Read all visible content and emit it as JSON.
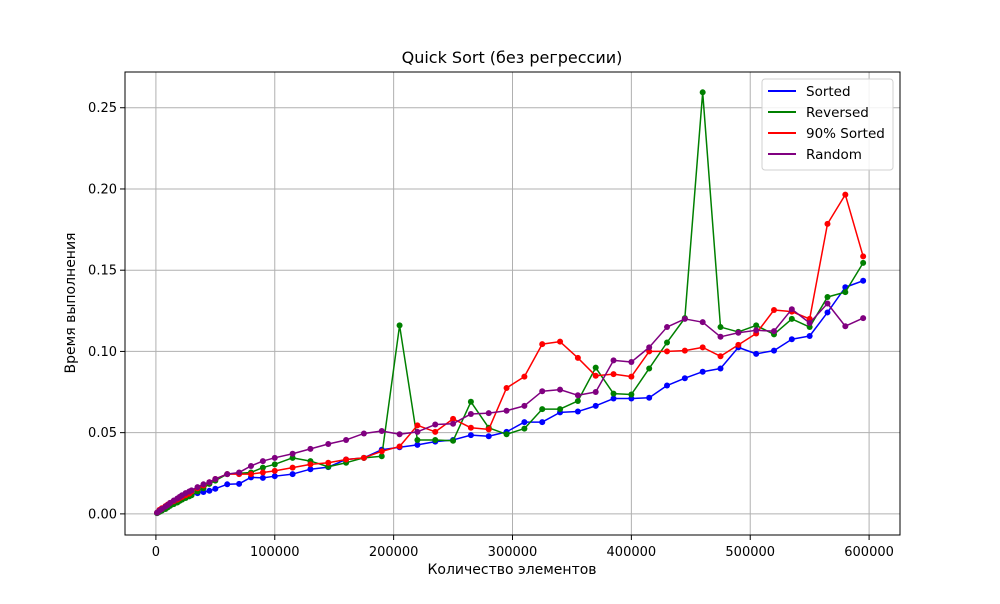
{
  "chart_data": {
    "type": "line",
    "title": "Quick Sort (без регрессии)",
    "xlabel": "Количество элементов",
    "ylabel": "Время выполнения",
    "xlim": [
      -26000,
      626000
    ],
    "ylim": [
      -0.013,
      0.272
    ],
    "xticks": [
      0,
      100000,
      200000,
      300000,
      400000,
      500000,
      600000
    ],
    "yticks": [
      0.0,
      0.05,
      0.1,
      0.15,
      0.2,
      0.25
    ],
    "xtick_labels": [
      "0",
      "100000",
      "200000",
      "300000",
      "400000",
      "500000",
      "600000"
    ],
    "ytick_labels": [
      "0.00",
      "0.05",
      "0.10",
      "0.15",
      "0.20",
      "0.25"
    ],
    "grid": true,
    "legend_position": "top-right",
    "x": [
      1000,
      3000,
      5000,
      8000,
      10000,
      12000,
      15000,
      18000,
      20000,
      22000,
      25000,
      28000,
      30000,
      35000,
      40000,
      45000,
      50000,
      60000,
      70000,
      80000,
      90000,
      100000,
      115000,
      130000,
      145000,
      160000,
      175000,
      190000,
      205000,
      220000,
      235000,
      250000,
      265000,
      280000,
      295000,
      310000,
      325000,
      340000,
      355000,
      370000,
      385000,
      400000,
      415000,
      430000,
      445000,
      460000,
      475000,
      490000,
      505000,
      520000,
      535000,
      550000,
      565000,
      580000,
      595000
    ],
    "series": [
      {
        "name": "Sorted",
        "color": "#0000ff",
        "values": [
          0.0005,
          0.0015,
          0.0025,
          0.0035,
          0.0045,
          0.0055,
          0.0065,
          0.0075,
          0.0085,
          0.0092,
          0.0102,
          0.0112,
          0.0118,
          0.0128,
          0.0135,
          0.0142,
          0.0155,
          0.0182,
          0.0185,
          0.0225,
          0.0222,
          0.0232,
          0.0245,
          0.0275,
          0.0288,
          0.0335,
          0.0345,
          0.0395,
          0.041,
          0.0425,
          0.0445,
          0.0455,
          0.0485,
          0.0478,
          0.0505,
          0.0565,
          0.0565,
          0.0625,
          0.063,
          0.0665,
          0.071,
          0.071,
          0.0715,
          0.079,
          0.0835,
          0.0875,
          0.0895,
          0.1025,
          0.0985,
          0.1005,
          0.1075,
          0.1095,
          0.124,
          0.1395,
          0.1435
        ]
      },
      {
        "name": "Reversed",
        "color": "#008000",
        "values": [
          0.0005,
          0.0012,
          0.002,
          0.003,
          0.004,
          0.005,
          0.006,
          0.007,
          0.008,
          0.0088,
          0.0098,
          0.0108,
          0.0115,
          0.0138,
          0.0158,
          0.0185,
          0.0205,
          0.0245,
          0.025,
          0.0255,
          0.0285,
          0.0305,
          0.0345,
          0.0325,
          0.029,
          0.0315,
          0.0345,
          0.0355,
          0.116,
          0.0455,
          0.0455,
          0.045,
          0.069,
          0.053,
          0.049,
          0.0525,
          0.0645,
          0.0645,
          0.0695,
          0.09,
          0.074,
          0.0735,
          0.0895,
          0.1055,
          0.1205,
          0.2595,
          0.115,
          0.112,
          0.116,
          0.1105,
          0.12,
          0.115,
          0.1335,
          0.1365,
          0.1545
        ]
      },
      {
        "name": "90% Sorted",
        "color": "#ff0000",
        "values": [
          0.0008,
          0.0025,
          0.0035,
          0.0048,
          0.0058,
          0.0068,
          0.0078,
          0.0088,
          0.0098,
          0.0105,
          0.0115,
          0.0125,
          0.0138,
          0.0158,
          0.0175,
          0.0195,
          0.0215,
          0.0245,
          0.0245,
          0.0245,
          0.0255,
          0.0265,
          0.0285,
          0.0305,
          0.0315,
          0.0335,
          0.0345,
          0.0385,
          0.0415,
          0.0545,
          0.0505,
          0.0585,
          0.053,
          0.052,
          0.0775,
          0.0845,
          0.1045,
          0.106,
          0.096,
          0.085,
          0.086,
          0.0845,
          0.1,
          0.1,
          0.1005,
          0.1025,
          0.097,
          0.104,
          0.111,
          0.1255,
          0.1245,
          0.12,
          0.1785,
          0.1965,
          0.1585
        ]
      },
      {
        "name": "Random",
        "color": "#800080",
        "values": [
          0.0008,
          0.002,
          0.003,
          0.0045,
          0.0055,
          0.0068,
          0.0082,
          0.0095,
          0.0105,
          0.0115,
          0.0128,
          0.0138,
          0.0145,
          0.0165,
          0.0182,
          0.0195,
          0.0215,
          0.0245,
          0.0255,
          0.0295,
          0.0325,
          0.0345,
          0.037,
          0.04,
          0.043,
          0.0455,
          0.0495,
          0.051,
          0.049,
          0.0505,
          0.055,
          0.0555,
          0.0615,
          0.062,
          0.0635,
          0.0665,
          0.0755,
          0.0765,
          0.073,
          0.075,
          0.0945,
          0.0935,
          0.1025,
          0.115,
          0.12,
          0.118,
          0.109,
          0.1115,
          0.113,
          0.1125,
          0.126,
          0.1175,
          0.1295,
          0.1155,
          0.1205
        ]
      }
    ]
  }
}
